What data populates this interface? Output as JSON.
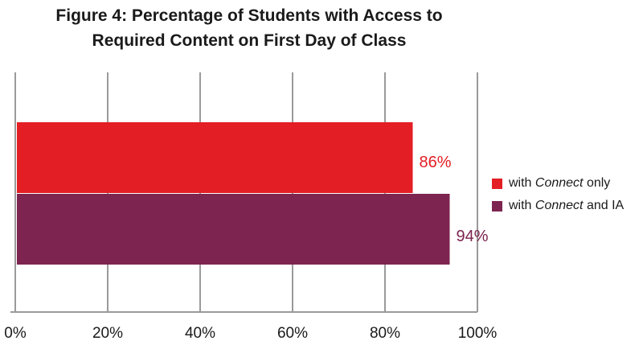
{
  "chart_data": {
    "type": "bar",
    "orientation": "horizontal",
    "title_line1": "Figure 4: Percentage of Students with Access to",
    "title_line2": "Required Content on First Day of Class",
    "xlim": [
      0,
      100
    ],
    "x_ticks": [
      "0%",
      "20%",
      "40%",
      "60%",
      "80%",
      "100%"
    ],
    "grid": true,
    "legend_position": "right",
    "series": [
      {
        "legend_pre": "with ",
        "legend_em": "Connect",
        "legend_post": " only",
        "value": 86,
        "label": "86%",
        "color": "#E31E24"
      },
      {
        "legend_pre": "with ",
        "legend_em": "Connect",
        "legend_post": " and IA",
        "value": 94,
        "label": "94%",
        "color": "#7D2450"
      }
    ]
  }
}
